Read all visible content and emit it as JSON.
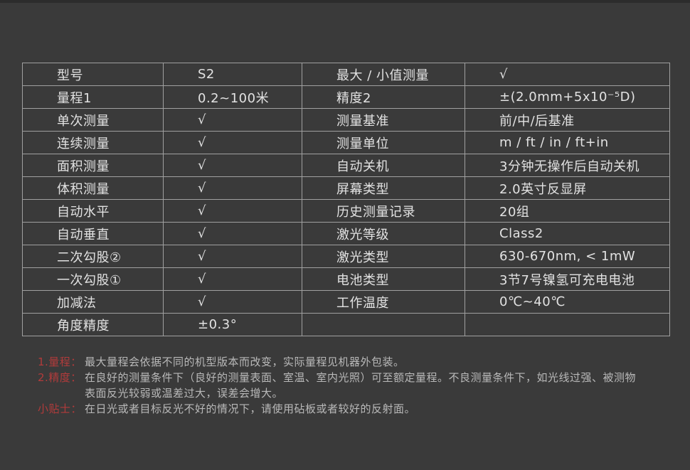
{
  "colors": {
    "background": "#3a3a3a",
    "top_strip": "#2c2c2c",
    "table_border": "#a0a0a0",
    "table_text": "#e2e2e2",
    "footnote_label_red": "#b23b3b",
    "footnote_text": "#b9b9b9"
  },
  "table": {
    "rows": [
      {
        "l1": "型号",
        "v1": "S2",
        "l2": "最大 / 小值测量",
        "v2": "√"
      },
      {
        "l1": "量程1",
        "v1": "0.2~100米",
        "l2": "精度2",
        "v2": "±(2.0mm+5x10⁻⁵D)"
      },
      {
        "l1": "单次测量",
        "v1": "√",
        "l2": "测量基准",
        "v2": "前/中/后基准"
      },
      {
        "l1": "连续测量",
        "v1": "√",
        "l2": "测量单位",
        "v2": "m / ft / in / ft+in"
      },
      {
        "l1": "面积测量",
        "v1": "√",
        "l2": "自动关机",
        "v2": "3分钟无操作后自动关机"
      },
      {
        "l1": "体积测量",
        "v1": "√",
        "l2": "屏幕类型",
        "v2": "2.0英寸反显屏"
      },
      {
        "l1": "自动水平",
        "v1": "√",
        "l2": "历史测量记录",
        "v2": "20组"
      },
      {
        "l1": "自动垂直",
        "v1": "√",
        "l2": "激光等级",
        "v2": "Class2"
      },
      {
        "l1": "二次勾股②",
        "v1": "√",
        "l2": "激光类型",
        "v2": "630-670nm, < 1mW"
      },
      {
        "l1": "一次勾股①",
        "v1": "√",
        "l2": "电池类型",
        "v2": "3节7号镍氢可充电电池"
      },
      {
        "l1": "加减法",
        "v1": "√",
        "l2": "工作温度",
        "v2": "0℃~40℃"
      },
      {
        "l1": "角度精度",
        "v1": "±0.3°",
        "l2": "",
        "v2": ""
      }
    ]
  },
  "footnotes": {
    "items": [
      {
        "label": "1.量程：",
        "lines": [
          "最大量程会依据不同的机型版本而改变，实际量程见机器外包装。"
        ]
      },
      {
        "label": "2.精度：",
        "lines": [
          "在良好的测量条件下（良好的测量表面、室温、室内光照）可至额定量程。不良测量条件下，如光线过强、被测物",
          "表面反光较弱或温差过大，误差会增大。"
        ]
      },
      {
        "label": "小贴士：",
        "lines": [
          "在日光或者目标反光不好的情况下，请使用砧板或者较好的反射面。"
        ]
      }
    ]
  }
}
